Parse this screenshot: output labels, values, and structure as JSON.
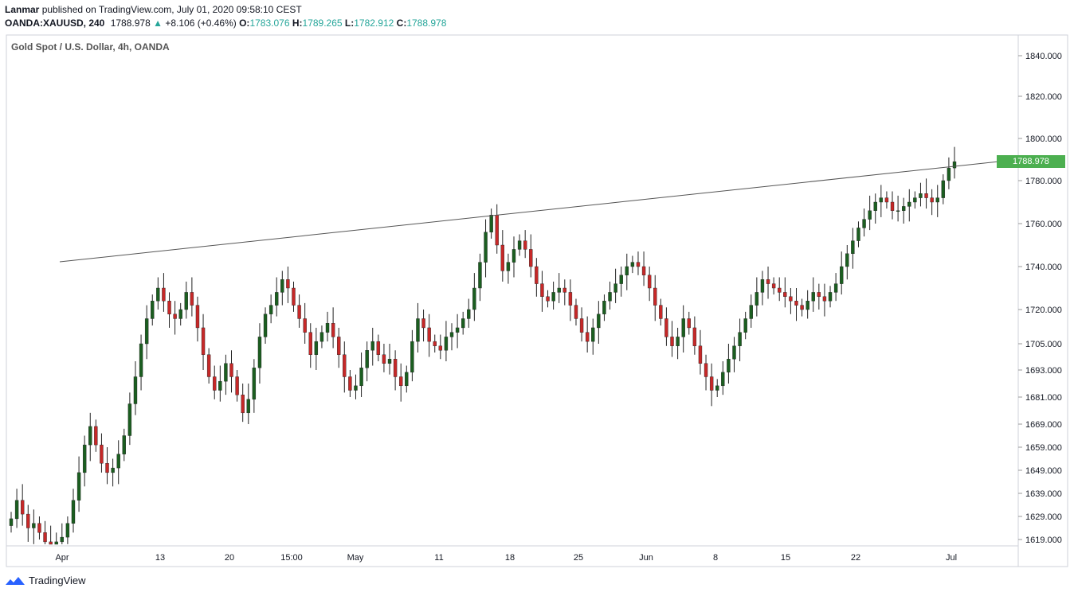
{
  "header": {
    "author": "Lanmar",
    "published_text": "published on TradingView.com, July 01, 2020 09:58:10 CEST",
    "symbol": "OANDA:XAUUSD, 240",
    "last": "1788.978",
    "change_arrow": "▲",
    "change": "+8.106 (+0.46%)",
    "o_label": "O:",
    "o_value": "1783.076",
    "h_label": "H:",
    "h_value": "1789.265",
    "l_label": "L:",
    "l_value": "1782.912",
    "c_label": "C:",
    "c_value": "1788.978"
  },
  "watermark": "Gold Spot / U.S. Dollar, 4h, OANDA",
  "footer": {
    "brand": "TradingView"
  },
  "colors": {
    "up": "#26a69a",
    "candle_up": "#1b5e20",
    "candle_down": "#c62828",
    "wick": "#222222",
    "price_tag": "#4caf50"
  },
  "chart_data": {
    "type": "candlestick",
    "title": "Gold Spot / U.S. Dollar, 4h, OANDA",
    "y_ticks": [
      "1840.000",
      "1820.000",
      "1800.000",
      "1780.000",
      "1760.000",
      "1740.000",
      "1720.000",
      "1705.000",
      "1693.000",
      "1681.000",
      "1669.000",
      "1659.000",
      "1649.000",
      "1639.000",
      "1629.000",
      "1619.000"
    ],
    "x_ticks": [
      "Apr",
      "13",
      "20",
      "15:00",
      "May",
      "11",
      "18",
      "25",
      "Jun",
      "8",
      "15",
      "22",
      "Jul"
    ],
    "last_price_label": "1788.978",
    "close_series": [
      1628,
      1636,
      1630,
      1624,
      1626,
      1622,
      1618,
      1616,
      1618,
      1620,
      1626,
      1636,
      1648,
      1660,
      1668,
      1660,
      1652,
      1648,
      1650,
      1656,
      1664,
      1678,
      1690,
      1705,
      1716,
      1724,
      1730,
      1724,
      1718,
      1716,
      1720,
      1728,
      1722,
      1712,
      1700,
      1690,
      1684,
      1688,
      1696,
      1690,
      1682,
      1674,
      1680,
      1694,
      1708,
      1718,
      1722,
      1728,
      1734,
      1730,
      1722,
      1716,
      1710,
      1700,
      1706,
      1710,
      1714,
      1708,
      1700,
      1690,
      1684,
      1686,
      1694,
      1702,
      1706,
      1700,
      1696,
      1698,
      1690,
      1686,
      1692,
      1706,
      1716,
      1712,
      1706,
      1704,
      1702,
      1708,
      1710,
      1712,
      1716,
      1720,
      1730,
      1742,
      1756,
      1764,
      1750,
      1738,
      1742,
      1748,
      1752,
      1748,
      1740,
      1732,
      1726,
      1724,
      1728,
      1730,
      1728,
      1722,
      1716,
      1710,
      1706,
      1712,
      1718,
      1724,
      1728,
      1732,
      1736,
      1740,
      1742,
      1740,
      1736,
      1730,
      1722,
      1716,
      1708,
      1704,
      1708,
      1716,
      1712,
      1704,
      1696,
      1690,
      1684,
      1686,
      1692,
      1698,
      1704,
      1710,
      1716,
      1722,
      1728,
      1734,
      1732,
      1730,
      1728,
      1726,
      1724,
      1722,
      1720,
      1724,
      1728,
      1726,
      1724,
      1728,
      1732,
      1740,
      1746,
      1752,
      1758,
      1762,
      1766,
      1770,
      1772,
      1770,
      1766,
      1766,
      1768,
      1770,
      1772,
      1774,
      1772,
      1770,
      1772,
      1780,
      1786,
      1789
    ]
  }
}
